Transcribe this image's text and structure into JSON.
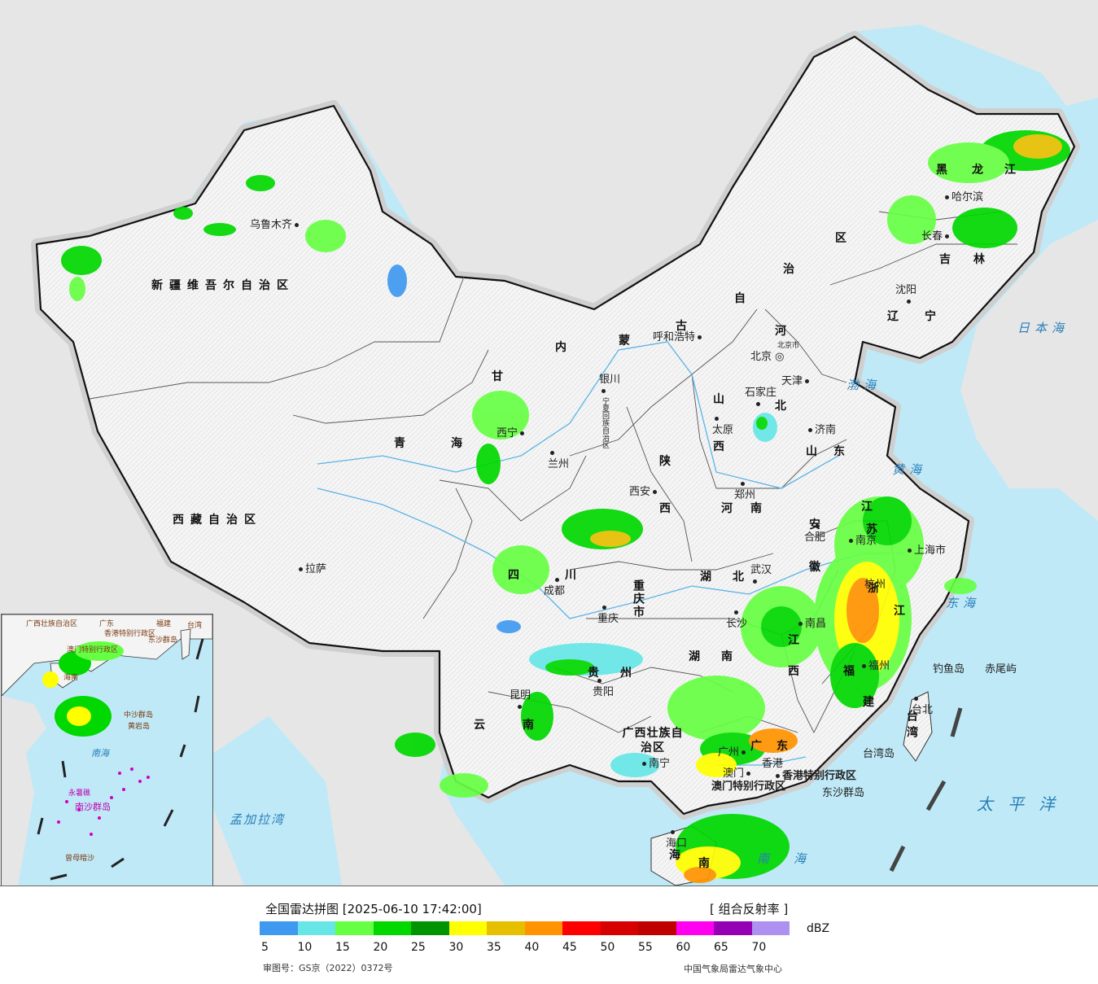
{
  "map": {
    "colors": {
      "land": "#f4f4f4",
      "sea": "#bfe9f7",
      "foreign": "#e6e6e6",
      "border": "#111111",
      "river": "#5ab4e6"
    },
    "provinces": [
      "新疆维吾尔自治区",
      "西藏自治区",
      "青",
      "海",
      "内",
      "蒙",
      "古",
      "自",
      "治",
      "区",
      "甘",
      "宁夏回族自治区",
      "陕",
      "西",
      "山",
      "西",
      "河",
      "北",
      "山",
      "东",
      "河",
      "南",
      "湖",
      "北",
      "湖",
      "南",
      "四",
      "川",
      "重庆市",
      "贵",
      "州",
      "云",
      "南",
      "广西壮族自治区",
      "广",
      "东",
      "江",
      "西",
      "福",
      "建",
      "浙",
      "江",
      "安",
      "徽",
      "江",
      "苏",
      "辽",
      "宁",
      "吉",
      "林",
      "黑",
      "龙",
      "江",
      "台湾",
      "海",
      "南"
    ],
    "cities": [
      "乌鲁木齐",
      "拉萨",
      "西宁",
      "兰州",
      "银川",
      "呼和浩特",
      "北京",
      "天津",
      "石家庄",
      "太原",
      "济南",
      "郑州",
      "西安",
      "成都",
      "重庆",
      "武汉",
      "合肥",
      "南京",
      "上海市",
      "杭州",
      "长沙",
      "南昌",
      "福州",
      "贵阳",
      "昆明",
      "南宁",
      "广州",
      "香港",
      "澳门",
      "海口",
      "台北",
      "沈阳",
      "长春",
      "哈尔滨"
    ],
    "city_labels": {
      "beijing_small": "北京市",
      "tianjin_small": "天津",
      "hongkong_sar": "香港特别行政区",
      "macao_sar": "澳门特别行政区",
      "dongsha": "东沙群岛",
      "diaoyu": "钓鱼岛",
      "chiwei": "赤尾屿",
      "taiwan_island": "台湾岛"
    },
    "seas": [
      "日本海",
      "渤海",
      "黄海",
      "东海",
      "南海",
      "太平洋",
      "孟加拉湾"
    ]
  },
  "inset": {
    "labels": [
      "广西壮族自治区",
      "广东",
      "福建",
      "台湾",
      "香港特别行政区",
      "澳门特别行政区",
      "东沙群岛",
      "海南",
      "中沙群岛",
      "黄岩岛",
      "南海",
      "永暑礁",
      "南沙群岛",
      "曾母暗沙"
    ]
  },
  "footer": {
    "title": "全国雷达拼图 [2025-06-10 17:42:00]",
    "product": "[ 组合反射率 ]",
    "unit": "dBZ",
    "approval": "审图号：GS京（2022）0372号",
    "credit": "中国气象局雷达气象中心",
    "legend_colors": [
      "#3f99f0",
      "#66e6e6",
      "#66ff44",
      "#00d800",
      "#009400",
      "#ffff00",
      "#e6c000",
      "#ff9400",
      "#ff0000",
      "#d60000",
      "#c00000",
      "#ff00f0",
      "#9600b4",
      "#ad90f0"
    ],
    "legend_ticks": [
      "5",
      "10",
      "15",
      "20",
      "25",
      "30",
      "35",
      "40",
      "45",
      "50",
      "55",
      "60",
      "65",
      "70"
    ]
  }
}
